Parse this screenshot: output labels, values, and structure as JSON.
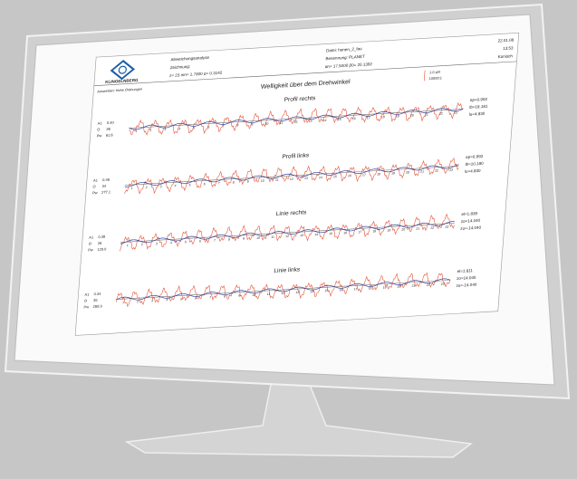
{
  "header": {
    "logo": "KLINGELNBERG",
    "left": [
      "Abweichungsanalyse",
      "Zeichnung:",
      "z= 23 mn= 1.7900 α= 0.3142"
    ],
    "middle": [
      "Datei: honen_2_fau",
      "Benennung: PLANET",
      "αn= 17.5000 β0= 20.1392"
    ],
    "right": [
      "22.01.08",
      "13:53",
      "Konisch"
    ]
  },
  "evaluation": "Auswertart: Hohe Ordnungen",
  "title": "Welligkeit über dem Drehwinkel",
  "scale": {
    "length": "1.0 µm",
    "factor": "10000:1"
  },
  "sections": [
    {
      "title": "Profil rechts",
      "labels": [
        [
          "A1",
          "0.40"
        ],
        [
          "O",
          "36"
        ],
        [
          "Pw",
          "61.6"
        ]
      ],
      "stats": [
        "ep=0.992",
        "lb=18.181",
        "lu=4.830"
      ],
      "teeth": [
        1,
        2,
        3,
        4,
        5,
        6,
        7,
        8,
        9,
        10,
        11,
        12,
        13,
        14,
        15,
        16,
        17,
        18,
        19,
        20,
        21,
        22,
        23
      ]
    },
    {
      "title": "Profil links",
      "labels": [
        [
          "A1",
          "0.46"
        ],
        [
          "O",
          "34"
        ],
        [
          "Pw",
          "277.1"
        ]
      ],
      "stats": [
        "ep=0.992",
        "lb=10.180",
        "lu=4.830"
      ],
      "teeth": [
        1,
        2,
        3,
        4,
        5,
        6,
        7,
        8,
        9,
        10,
        11,
        12,
        13,
        14,
        15,
        16,
        17,
        18,
        19,
        20,
        21,
        22,
        23
      ]
    },
    {
      "title": "Linie rechts",
      "labels": [
        [
          "A1",
          "0.38"
        ],
        [
          "O",
          "26"
        ],
        [
          "Pw",
          "129.0"
        ]
      ],
      "stats": [
        "el=1.839",
        "zo=14.040",
        "zu=-14.040"
      ],
      "teeth": [
        1,
        2,
        3,
        4,
        5,
        6,
        7,
        8,
        9,
        10,
        11,
        12,
        13,
        14,
        15,
        16,
        17,
        18,
        19,
        20,
        21,
        22,
        23
      ]
    },
    {
      "title": "Linie links",
      "labels": [
        [
          "A1",
          "0.34"
        ],
        [
          "O",
          "35"
        ],
        [
          "Pw",
          "269.9"
        ]
      ],
      "stats": [
        "el=1.811",
        "zo=14.040",
        "zu=-14.040"
      ],
      "teeth": [
        1,
        2,
        3,
        4,
        5,
        6,
        7,
        8,
        9,
        10,
        11,
        12,
        13,
        14,
        15,
        16,
        17,
        18,
        19,
        20,
        21,
        22,
        23
      ]
    }
  ]
}
